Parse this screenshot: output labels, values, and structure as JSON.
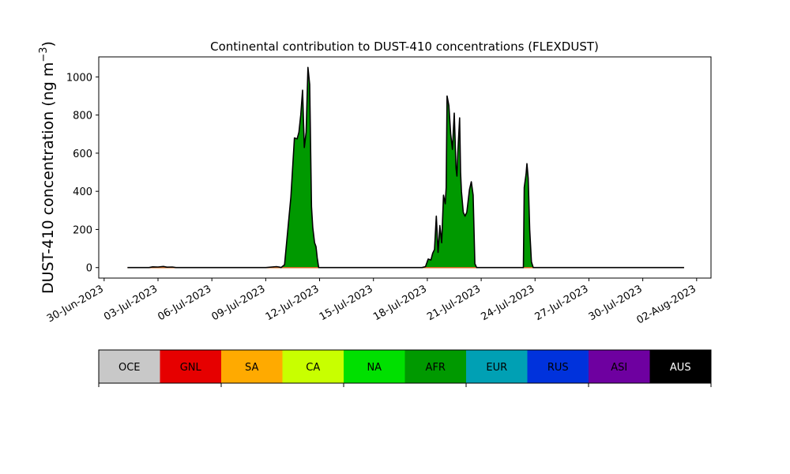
{
  "chart_data": {
    "type": "area",
    "title": "Continental contribution to DUST-410 concentrations (FLEXDUST)",
    "ylabel": "DUST-410 concentration (ng m⁻³)",
    "ylabel_main": "DUST-410 concentration (ng m",
    "ylabel_sup": "−3",
    "ylabel_close": ")",
    "xlabel": "",
    "x_tick_labels": [
      "30-Jun-2023",
      "03-Jul-2023",
      "06-Jul-2023",
      "09-Jul-2023",
      "12-Jul-2023",
      "15-Jul-2023",
      "18-Jul-2023",
      "21-Jul-2023",
      "24-Jul-2023",
      "27-Jul-2023",
      "30-Jul-2023",
      "02-Aug-2023"
    ],
    "x_tick_days": [
      0,
      3,
      6,
      9,
      12,
      15,
      18,
      21,
      24,
      27,
      30,
      33
    ],
    "x_range_days": [
      -0.3,
      33.8
    ],
    "x_origin_label": "30-Jun-2023",
    "y_ticks": [
      0,
      200,
      400,
      600,
      800,
      1000
    ],
    "y_tick_labels": [
      "0",
      "200",
      "400",
      "600",
      "800",
      "1000"
    ],
    "ylim": [
      -55,
      1105
    ],
    "grid": false,
    "legend_placement": "separate color bar below chart",
    "stacked_series_color": "#009900",
    "total_line_color": "#000000",
    "baseline_line_color": "#d2691e",
    "series": [
      {
        "name": "AFR",
        "x_day": [
          1.3,
          2.5,
          2.7,
          3.0,
          3.3,
          3.5,
          3.8,
          4.0,
          9.0,
          9.6,
          9.75,
          9.85,
          10.05,
          10.4,
          10.6,
          10.75,
          10.85,
          10.95,
          11.05,
          11.15,
          11.25,
          11.35,
          11.45,
          11.55,
          11.62,
          11.72,
          11.8,
          11.87,
          11.95,
          12.1,
          12.3,
          12.4,
          12.6,
          12.8,
          17.7,
          17.9,
          18.05,
          18.2,
          18.3,
          18.4,
          18.5,
          18.6,
          18.7,
          18.8,
          18.9,
          19.0,
          19.05,
          19.1,
          19.2,
          19.3,
          19.4,
          19.5,
          19.6,
          19.65,
          19.7,
          19.8,
          19.85,
          19.9,
          20.0,
          20.1,
          20.2,
          20.35,
          20.45,
          20.55,
          20.65,
          20.75,
          20.85,
          20.95,
          21.05,
          21.15,
          21.25,
          21.35,
          21.45,
          23.3,
          23.35,
          23.4,
          23.5,
          23.55,
          23.62,
          23.7,
          23.8,
          23.9,
          24.0,
          24.2,
          32.3
        ],
        "values": [
          0,
          0,
          4,
          3,
          6,
          2,
          3,
          0,
          0,
          5,
          3,
          0,
          15,
          370,
          680,
          675,
          710,
          800,
          930,
          630,
          710,
          1050,
          960,
          320,
          210,
          130,
          110,
          50,
          0,
          0,
          0,
          0,
          0,
          0,
          0,
          5,
          45,
          40,
          75,
          95,
          270,
          80,
          220,
          130,
          380,
          335,
          420,
          900,
          850,
          700,
          620,
          810,
          520,
          480,
          600,
          785,
          500,
          400,
          290,
          270,
          290,
          410,
          450,
          380,
          20,
          0,
          0,
          0,
          0,
          0,
          0,
          0,
          0,
          0,
          0,
          420,
          490,
          545,
          470,
          200,
          30,
          0,
          0,
          0,
          0
        ]
      }
    ],
    "legend_entries": [
      {
        "label": "OCE",
        "color": "#c8c8c8"
      },
      {
        "label": "GNL",
        "color": "#e60000"
      },
      {
        "label": "SA",
        "color": "#ffaa00"
      },
      {
        "label": "CA",
        "color": "#c8ff00"
      },
      {
        "label": "NA",
        "color": "#00e000"
      },
      {
        "label": "AFR",
        "color": "#009900"
      },
      {
        "label": "EUR",
        "color": "#00a0b4"
      },
      {
        "label": "RUS",
        "color": "#0032dc"
      },
      {
        "label": "ASI",
        "color": "#6e00a0"
      },
      {
        "label": "AUS",
        "color": "#000000"
      }
    ],
    "legend_label_colors": {
      "AUS": "#ffffff"
    }
  }
}
